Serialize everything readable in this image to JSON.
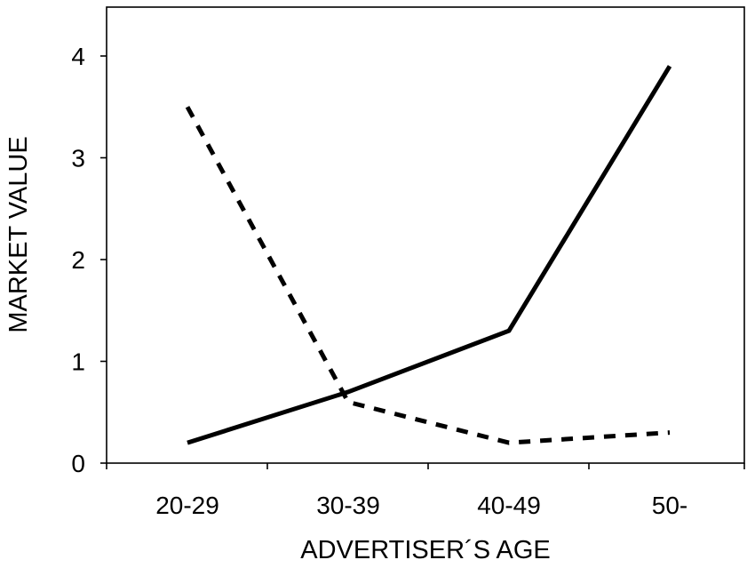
{
  "chart_data": {
    "type": "line",
    "categories": [
      "20-29",
      "30-39",
      "40-49",
      "50-"
    ],
    "xlabel": "ADVERTISER´S AGE",
    "ylabel": "MARKET VALUE",
    "ylim": [
      0,
      4.5
    ],
    "yticks": [
      "0",
      "1",
      "2",
      "3",
      "4"
    ],
    "grid": false,
    "legend": "none",
    "series": [
      {
        "style": "solid",
        "color": "#000000",
        "values": [
          0.2,
          0.7,
          1.3,
          3.9
        ]
      },
      {
        "style": "dashed",
        "color": "#000000",
        "values": [
          3.5,
          0.6,
          0.2,
          0.3
        ]
      }
    ]
  }
}
